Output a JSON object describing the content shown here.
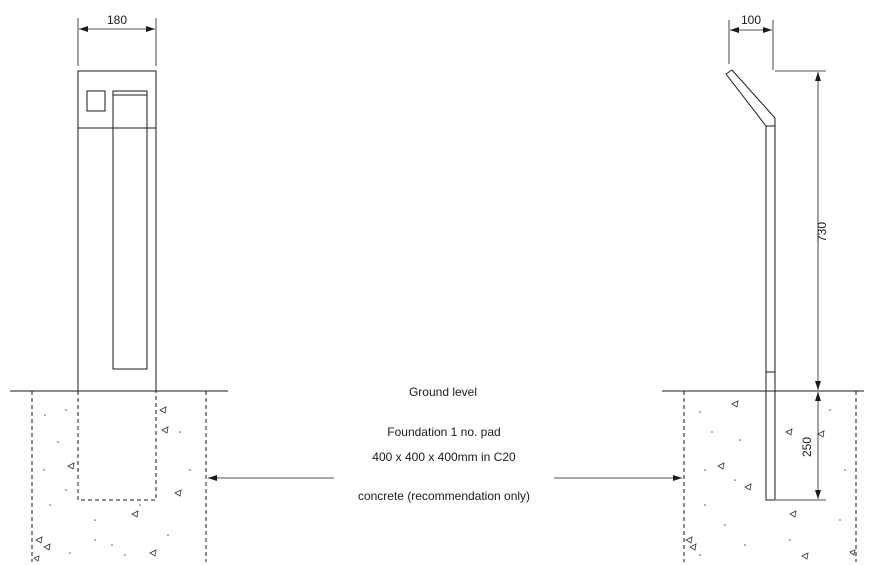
{
  "dimensions": {
    "front_width": "180",
    "side_width": "100",
    "post_height": "730",
    "foundation_depth": "250"
  },
  "labels": {
    "ground_level": "Ground level",
    "foundation_line1": "Foundation 1 no. pad",
    "foundation_line2": "400 x 400 x 400mm in C20",
    "foundation_line3": "concrete (recommendation only)"
  }
}
